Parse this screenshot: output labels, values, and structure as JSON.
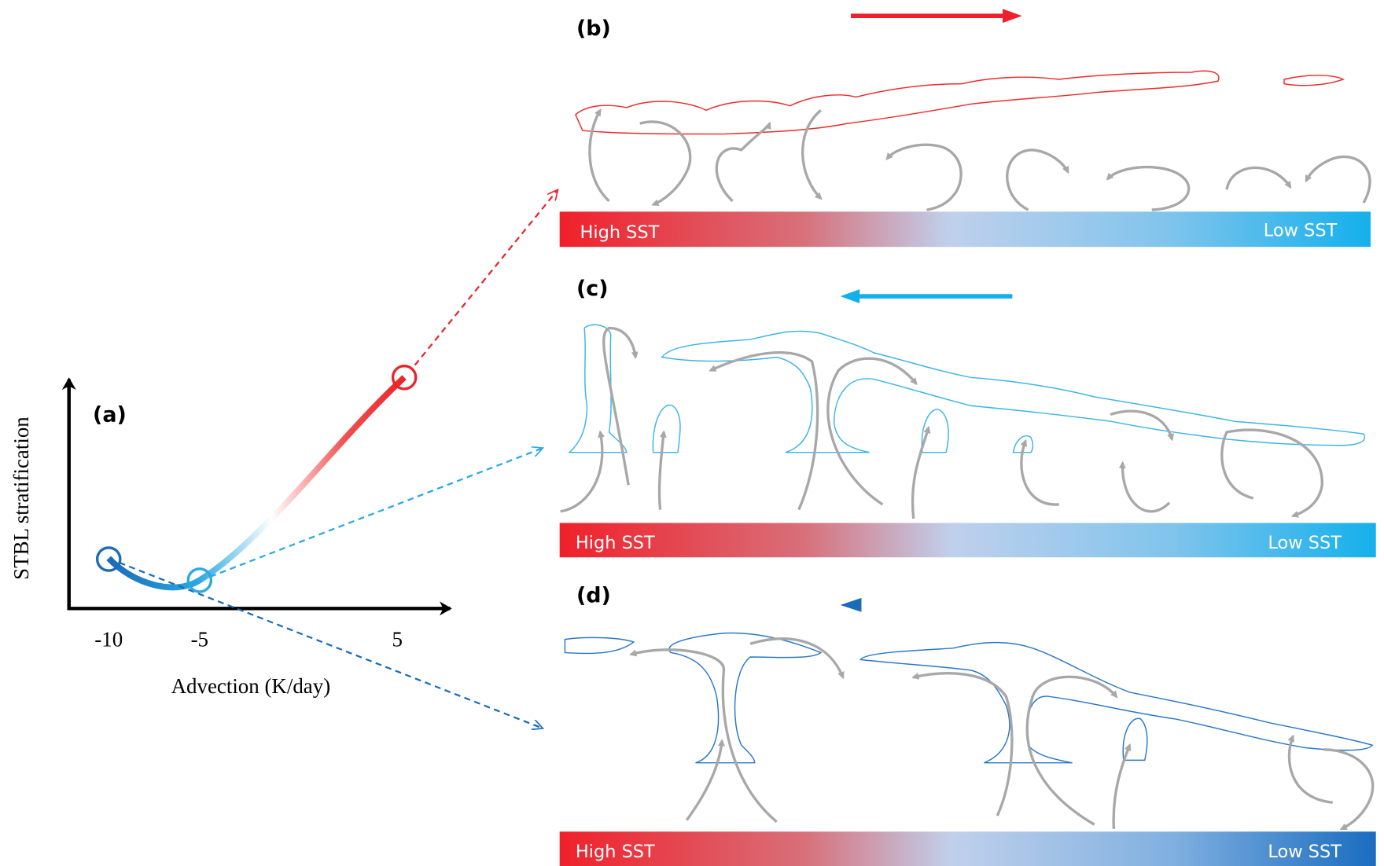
{
  "panel_a": {
    "label": "(a)",
    "y_axis_label": "STBL stratification",
    "x_axis_label": "Advection (K/day)",
    "x_ticks": [
      "-10",
      "-5",
      "5"
    ]
  },
  "panels": [
    {
      "label": "(b)",
      "high": "High SST",
      "low": "Low SST"
    },
    {
      "label": "(c)",
      "high": "High SST",
      "low": "Low SST"
    },
    {
      "label": "(d)",
      "high": "High SST",
      "low": "Low SST"
    }
  ]
}
